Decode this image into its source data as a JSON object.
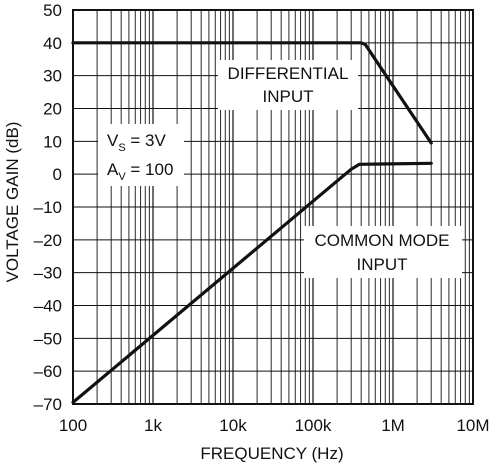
{
  "chart_data": {
    "type": "line",
    "title": "",
    "xlabel": "FREQUENCY (Hz)",
    "ylabel": "VOLTAGE GAIN (dB)",
    "x_scale": "log",
    "xlim": [
      100,
      10000000
    ],
    "ylim": [
      -70,
      50
    ],
    "grid": true,
    "x_major_ticks": [
      100,
      1000,
      10000,
      100000,
      1000000,
      10000000
    ],
    "x_tick_labels": [
      "100",
      "1k",
      "10k",
      "100k",
      "1M",
      "10M"
    ],
    "y_ticks": [
      -70,
      -60,
      -50,
      -40,
      -30,
      -20,
      -10,
      0,
      10,
      20,
      30,
      40,
      50
    ],
    "y_tick_labels": [
      "–70",
      "–60",
      "–50",
      "–40",
      "–30",
      "–20",
      "–10",
      "0",
      "10",
      "20",
      "30",
      "40",
      "50"
    ],
    "series": [
      {
        "name": "DIFFERENTIAL INPUT",
        "x": [
          100,
          400000,
          450000,
          3000000
        ],
        "y": [
          40,
          40,
          39.5,
          9.5
        ]
      },
      {
        "name": "COMMON MODE INPUT",
        "x": [
          100,
          300000,
          380000,
          3000000
        ],
        "y": [
          -69.5,
          1.5,
          3,
          3.3
        ]
      }
    ],
    "annotations": {
      "differential_line1": "DIFFERENTIAL",
      "differential_line2": "INPUT",
      "common_line1": "COMMON MODE",
      "common_line2": "INPUT",
      "vs_main": "V",
      "vs_sub": "S",
      "vs_value": " = 3V",
      "av_main": "A",
      "av_sub": "V",
      "av_value": " = 100"
    }
  }
}
